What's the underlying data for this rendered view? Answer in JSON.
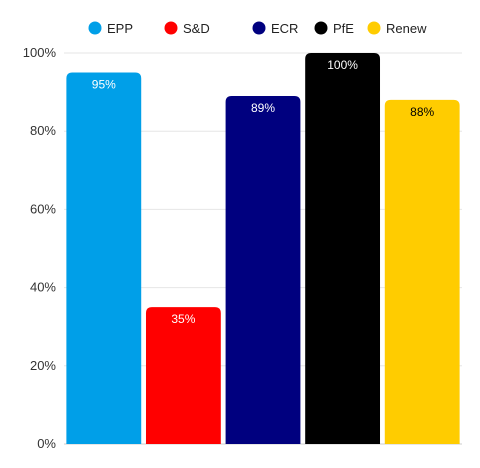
{
  "chart_data": {
    "type": "bar",
    "title": "",
    "xlabel": "",
    "ylabel": "",
    "categories": [
      "EPP",
      "S&D",
      "ECR",
      "PfE",
      "Renew"
    ],
    "values": [
      95,
      35,
      89,
      100,
      88
    ],
    "value_labels": [
      "95%",
      "35%",
      "89%",
      "100%",
      "88%"
    ],
    "colors": [
      "#009fe8",
      "#ff0000",
      "#00007f",
      "#000000",
      "#ffcc00"
    ],
    "label_colors": [
      "#ffffff",
      "#ffffff",
      "#ffffff",
      "#ffffff",
      "#000000"
    ],
    "ylim": [
      0,
      100
    ],
    "yticks": [
      0,
      20,
      40,
      60,
      80,
      100
    ],
    "ytick_labels": [
      "0%",
      "20%",
      "40%",
      "60%",
      "80%",
      "100%"
    ],
    "grid": true,
    "legend_position": "top",
    "legend": [
      "EPP",
      "S&D",
      "ECR",
      "PfE",
      "Renew"
    ]
  }
}
